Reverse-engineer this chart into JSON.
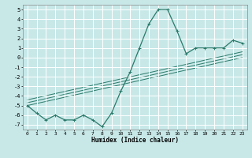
{
  "title": "",
  "xlabel": "Humidex (Indice chaleur)",
  "bg_color": "#c8e8e8",
  "grid_color": "#ffffff",
  "line_color": "#2a7a6a",
  "x_data": [
    0,
    1,
    2,
    3,
    4,
    5,
    6,
    7,
    8,
    9,
    10,
    11,
    12,
    13,
    14,
    15,
    16,
    17,
    18,
    19,
    20,
    21,
    22,
    23
  ],
  "y_main": [
    -5.0,
    -5.8,
    -6.5,
    -6.0,
    -6.5,
    -6.5,
    -6.0,
    -6.5,
    -7.2,
    -5.8,
    -3.5,
    -1.5,
    1.0,
    3.5,
    5.0,
    5.0,
    2.8,
    0.4,
    1.0,
    1.0,
    1.0,
    1.0,
    1.8,
    1.5
  ],
  "y_trend1": [
    -5.0,
    -4.78,
    -4.57,
    -4.35,
    -4.13,
    -3.91,
    -3.7,
    -3.48,
    -3.26,
    -3.04,
    -2.83,
    -2.61,
    -2.39,
    -2.17,
    -1.96,
    -1.74,
    -1.52,
    -1.3,
    -1.09,
    -0.87,
    -0.65,
    -0.43,
    -0.22,
    0.0
  ],
  "y_trend2": [
    -4.7,
    -4.49,
    -4.27,
    -4.05,
    -3.83,
    -3.62,
    -3.4,
    -3.18,
    -2.96,
    -2.75,
    -2.53,
    -2.31,
    -2.09,
    -1.88,
    -1.66,
    -1.44,
    -1.22,
    -1.01,
    -0.79,
    -0.57,
    -0.35,
    -0.14,
    0.08,
    0.3
  ],
  "y_trend3": [
    -4.4,
    -4.19,
    -3.97,
    -3.75,
    -3.53,
    -3.32,
    -3.1,
    -2.88,
    -2.66,
    -2.45,
    -2.23,
    -2.01,
    -1.79,
    -1.58,
    -1.36,
    -1.14,
    -0.92,
    -0.71,
    -0.49,
    -0.27,
    -0.05,
    0.16,
    0.38,
    0.6
  ],
  "ylim": [
    -7.5,
    5.5
  ],
  "xlim": [
    -0.5,
    23.5
  ],
  "yticks": [
    -7,
    -6,
    -5,
    -4,
    -3,
    -2,
    -1,
    0,
    1,
    2,
    3,
    4,
    5
  ],
  "xticks": [
    0,
    1,
    2,
    3,
    4,
    5,
    6,
    7,
    8,
    9,
    10,
    11,
    12,
    13,
    14,
    15,
    16,
    17,
    18,
    19,
    20,
    21,
    22,
    23
  ]
}
